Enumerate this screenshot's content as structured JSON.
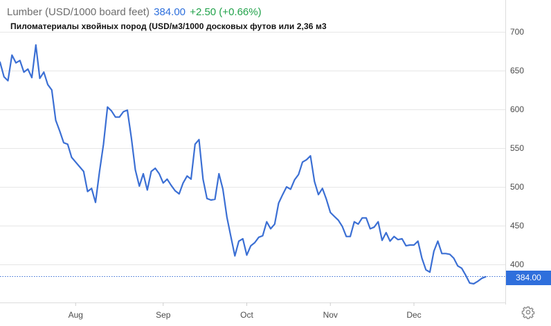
{
  "header": {
    "title": "Lumber (USD/1000 board feet)",
    "price": "384.00",
    "change": "+2.50 (+0.66%)"
  },
  "subtitle": "Пиломатериалы хвойных пород (USD/м3/1000 досковых футов или 2,36 м3",
  "last_price_label": "384.00",
  "colors": {
    "line": "#3b6fd4",
    "price": "#2d6fdc",
    "change": "#21a24a",
    "grid": "#e6e6e6",
    "tag_bg": "#2f6fdc"
  },
  "icons": {
    "settings": "gear-icon"
  },
  "chart_data": {
    "type": "line",
    "title": "Lumber (USD/1000 board feet)",
    "xlabel": "",
    "ylabel": "",
    "ylim": [
      350,
      720
    ],
    "y_ticks": [
      400,
      450,
      500,
      550,
      600,
      650,
      700
    ],
    "x_ticks": [
      "Aug",
      "Sep",
      "Oct",
      "Nov",
      "Dec"
    ],
    "x_tick_index": [
      19,
      41,
      62,
      83,
      104
    ],
    "grid": true,
    "last_value": 384.0,
    "series": [
      {
        "values": [
          661,
          642,
          637,
          670,
          660,
          663,
          648,
          652,
          641,
          683,
          640,
          648,
          632,
          625,
          586,
          572,
          557,
          555,
          538,
          532,
          526,
          520,
          494,
          498,
          480,
          520,
          555,
          603,
          598,
          590,
          590,
          597,
          599,
          563,
          522,
          501,
          517,
          496,
          520,
          524,
          517,
          505,
          510,
          502,
          495,
          491,
          505,
          514,
          510,
          555,
          561,
          510,
          485,
          483,
          484,
          517,
          497,
          461,
          436,
          411,
          430,
          433,
          412,
          424,
          428,
          435,
          437,
          455,
          446,
          452,
          479,
          490,
          500,
          497,
          509,
          516,
          532,
          535,
          540,
          507,
          490,
          498,
          484,
          467,
          462,
          457,
          449,
          436,
          436,
          455,
          452,
          460,
          460,
          446,
          448,
          455,
          431,
          441,
          430,
          436,
          432,
          433,
          424,
          425,
          425,
          430,
          408,
          393,
          390,
          417,
          430,
          414,
          414,
          413,
          408,
          398,
          395,
          386,
          376,
          375,
          378,
          382,
          384
        ]
      }
    ]
  }
}
